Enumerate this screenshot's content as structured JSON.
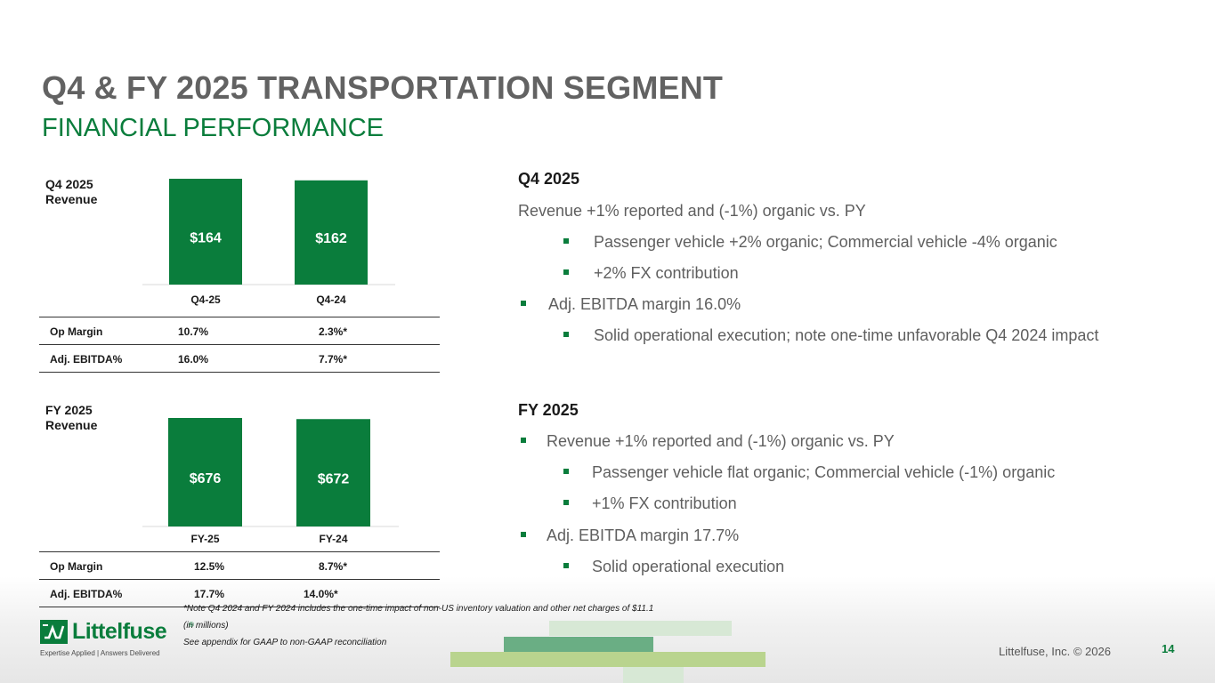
{
  "header": {
    "title": "Q4 & FY 2025 TRANSPORTATION SEGMENT",
    "subtitle": "FINANCIAL PERFORMANCE"
  },
  "colors": {
    "accent_green": "#0a7d3c",
    "text_gray": "#5f5f5f",
    "title_gray": "#626262"
  },
  "chart_data": [
    {
      "type": "bar",
      "label_line1": "Q4 2025",
      "label_line2": "Revenue",
      "categories": [
        "Q4-25",
        "Q4-24"
      ],
      "values": [
        164,
        162
      ],
      "data_labels": [
        "$164",
        "$162"
      ],
      "color": "#0a7d3c"
    },
    {
      "type": "bar",
      "label_line1": "FY 2025",
      "label_line2": "Revenue",
      "categories": [
        "FY-25",
        "FY-24"
      ],
      "values": [
        676,
        672
      ],
      "data_labels": [
        "$676",
        "$672"
      ],
      "color": "#0a7d3c"
    }
  ],
  "q4_metrics": [
    {
      "label": "Op Margin",
      "current": "10.7%",
      "prior": "2.3%*"
    },
    {
      "label": "Adj. EBITDA%",
      "current": "16.0%",
      "prior": "7.7%*"
    }
  ],
  "fy_metrics": [
    {
      "label": "Op Margin",
      "current": "12.5%",
      "prior": "8.7%*"
    },
    {
      "label": "Adj. EBITDA%",
      "current": "17.7%",
      "prior": "14.0%*"
    }
  ],
  "q4_commentary": {
    "heading": "Q4 2025",
    "revenue": "Revenue +1% reported and (-1%) organic vs. PY",
    "sub1": "Passenger vehicle +2% organic; Commercial vehicle -4% organic",
    "sub2": "+2% FX contribution",
    "ebitda": "Adj. EBITDA margin 16.0%",
    "sub3": "Solid operational execution; note one-time unfavorable Q4 2024 impact"
  },
  "fy_commentary": {
    "heading": "FY 2025",
    "revenue": "Revenue +1% reported and (-1%) organic vs. PY",
    "sub1": "Passenger vehicle flat organic; Commercial vehicle (-1%) organic",
    "sub2": "+1% FX contribution",
    "ebitda": "Adj. EBITDA margin 17.7%",
    "sub3": "Solid operational execution"
  },
  "footnotes": {
    "note": "*Note Q4 2024 and FY 2024 includes the one-time impact of non-US inventory valuation and other net charges of $11.1",
    "units": "(in millions)",
    "appendix": "See appendix for GAAP to non-GAAP reconciliation"
  },
  "footer": {
    "logo_text": "Littelfuse",
    "logo_reg": "®",
    "tagline": "Expertise Applied | Answers Delivered",
    "copyright": "Littelfuse, Inc. © 2026",
    "page_number": "14"
  }
}
